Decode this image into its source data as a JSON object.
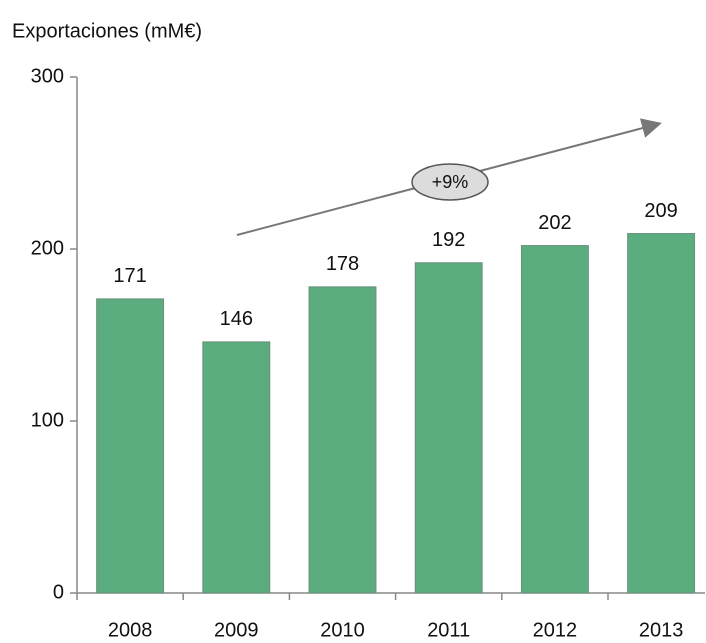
{
  "chart_data": {
    "type": "bar",
    "title": "Exportaciones (mM€)",
    "categories": [
      "2008",
      "2009",
      "2010",
      "2011",
      "2012",
      "2013"
    ],
    "values": [
      171,
      146,
      178,
      192,
      202,
      209
    ],
    "color": "#5bad80",
    "ylim": [
      0,
      300
    ],
    "yticks": [
      0,
      100,
      200,
      300
    ],
    "annotation": "+9%"
  }
}
